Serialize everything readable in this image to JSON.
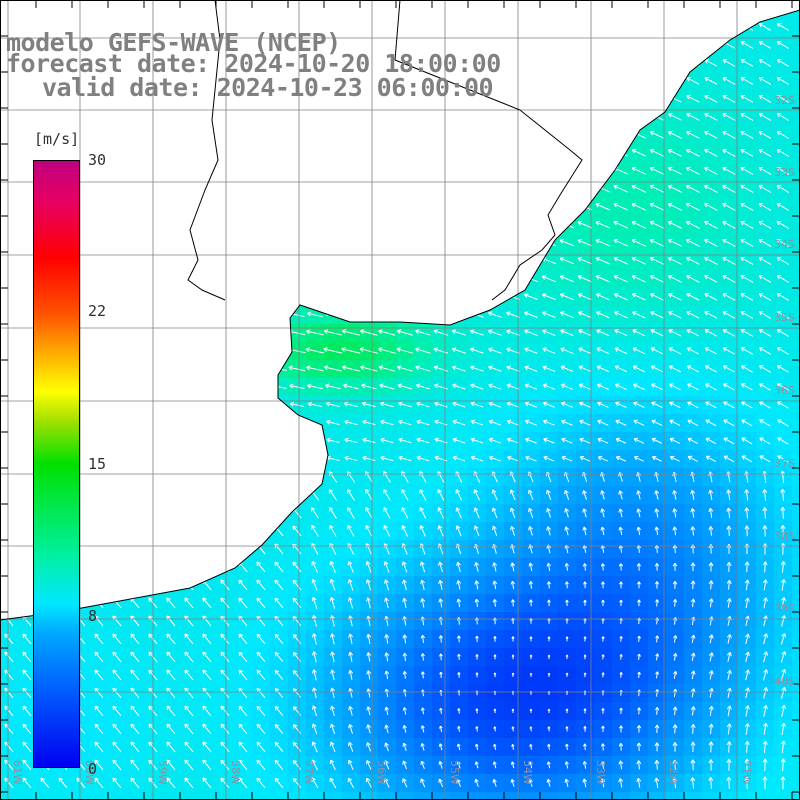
{
  "title": {
    "line1": "modelo GEFS-WAVE (NCEP)",
    "line2": "forecast date: 2024-10-20 18:00:00",
    "line3": "valid date: 2024-10-23 06:00:00"
  },
  "colorbar": {
    "unit": "[m/s]",
    "ticks": [
      "30",
      "22",
      "15",
      "8",
      "0"
    ],
    "vmin": 0,
    "vmax": 30
  },
  "map": {
    "lon_range": [
      -62,
      -51
    ],
    "lat_range": [
      -41,
      -31
    ],
    "lat_labels": [
      "32S",
      "33S",
      "34S",
      "35S",
      "36S",
      "37S",
      "38S",
      "39S",
      "40S"
    ],
    "lon_labels": [
      "61W",
      "60W",
      "59W",
      "58W",
      "57W",
      "56W",
      "55W",
      "54W",
      "53W",
      "52W",
      "51W"
    ],
    "grid": true,
    "land_color": "#ffffff",
    "arrow_color": "#ffffff",
    "grid_color": "#808080"
  }
}
